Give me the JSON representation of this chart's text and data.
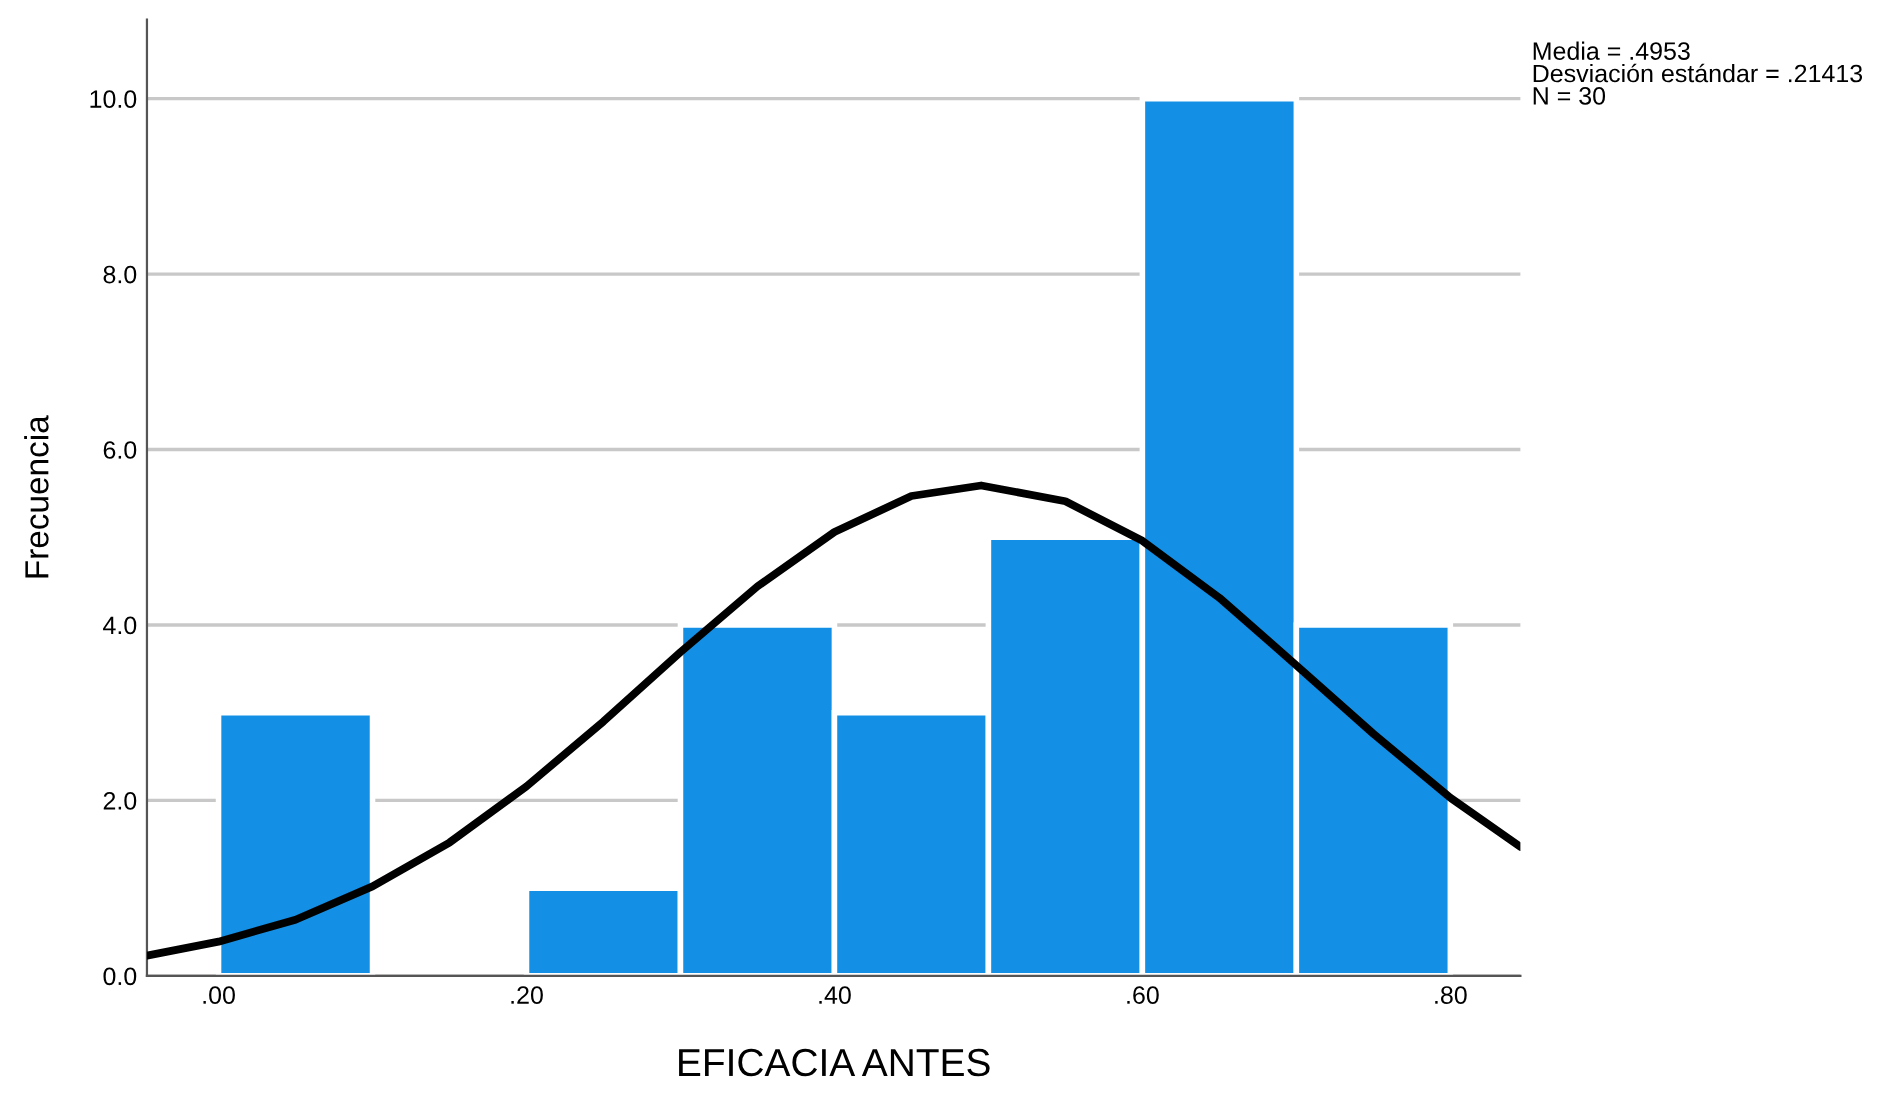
{
  "chart_data": {
    "type": "histogram",
    "xlabel": "EFICACIA ANTES",
    "ylabel": "Frecuencia",
    "bins": [
      0,
      0.1,
      0.2,
      0.3,
      0.4,
      0.5,
      0.6,
      0.7,
      0.8
    ],
    "values": [
      3,
      0,
      1,
      4,
      3,
      5,
      10,
      4
    ],
    "color": "#1390e6",
    "series": [
      {
        "type": "line",
        "color": "#000000",
        "x": [
          -0.0465,
          0,
          0.05,
          0.1,
          0.15,
          0.2,
          0.25,
          0.3,
          0.35,
          0.4,
          0.45,
          0.4953,
          0.55,
          0.6,
          0.65,
          0.7,
          0.75,
          0.8,
          0.8455
        ],
        "values": [
          0.23,
          0.39,
          0.64,
          1.02,
          1.52,
          2.16,
          2.9,
          3.69,
          4.44,
          5.06,
          5.47,
          5.59,
          5.41,
          4.96,
          4.31,
          3.54,
          2.76,
          2.03,
          1.47
        ]
      }
    ],
    "annotations": [
      "Media = .4953",
      "Desviación estándar = .21413",
      "N = 30"
    ],
    "xlim": [
      -0.0465,
      0.8455
    ],
    "ylim": [
      0,
      10.9
    ],
    "xticks": [
      {
        "value": 0,
        "label": ".00"
      },
      {
        "value": 0.2,
        "label": ".20"
      },
      {
        "value": 0.4,
        "label": ".40"
      },
      {
        "value": 0.6,
        "label": ".60"
      },
      {
        "value": 0.8,
        "label": ".80"
      }
    ],
    "yticks": [
      {
        "value": 0,
        "label": "0.0"
      },
      {
        "value": 2,
        "label": "2.0"
      },
      {
        "value": 4,
        "label": "4.0"
      },
      {
        "value": 6,
        "label": "6.0"
      },
      {
        "value": 8,
        "label": "8.0"
      },
      {
        "value": 10,
        "label": "10.0"
      }
    ],
    "grid": "y",
    "legend": false
  }
}
